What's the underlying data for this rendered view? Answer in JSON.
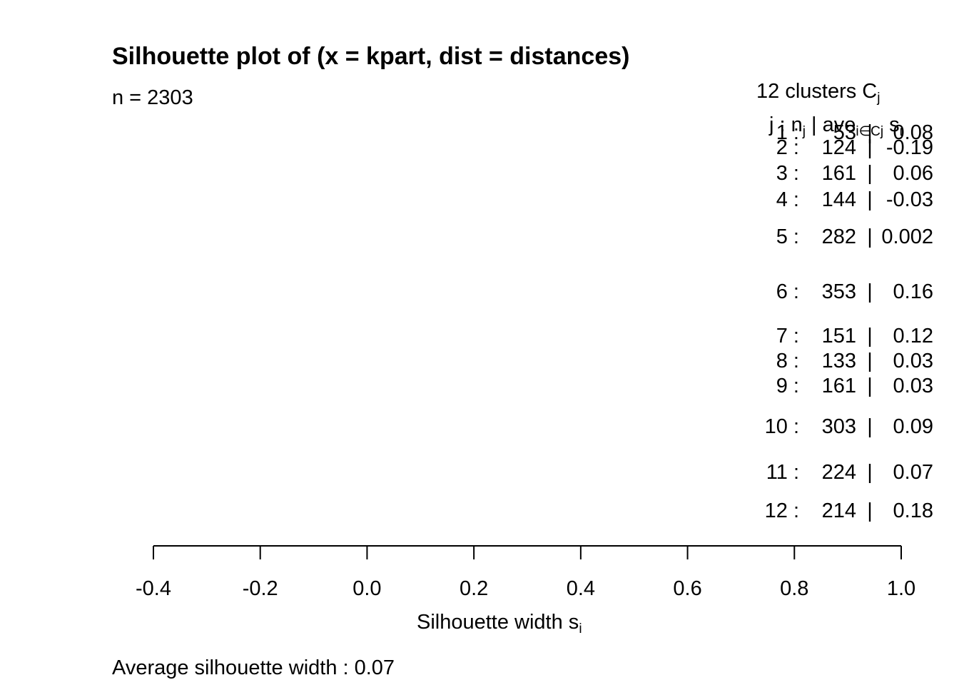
{
  "chart_data": {
    "type": "bar",
    "title": "Silhouette plot of (x = kpart, dist = distances)",
    "n_label": "n = 2303",
    "clusters_header": "12  clusters  C",
    "clusters_header_sub": "j",
    "columns_header": "j :  n",
    "columns_header_sub": "j",
    "columns_header_rest": " | ave",
    "columns_header_rest_sub": "i∈Cj",
    "columns_header_tail": " s",
    "columns_header_tail_sub": "i",
    "clusters": [
      {
        "j": "1",
        "n": "53",
        "ave": "0.08"
      },
      {
        "j": "2",
        "n": "124",
        "ave": "-0.19"
      },
      {
        "j": "3",
        "n": "161",
        "ave": "0.06"
      },
      {
        "j": "4",
        "n": "144",
        "ave": "-0.03"
      },
      {
        "j": "5",
        "n": "282",
        "ave": "0.002"
      },
      {
        "j": "6",
        "n": "353",
        "ave": "0.16"
      },
      {
        "j": "7",
        "n": "151",
        "ave": "0.12"
      },
      {
        "j": "8",
        "n": "133",
        "ave": "0.03"
      },
      {
        "j": "9",
        "n": "161",
        "ave": "0.03"
      },
      {
        "j": "10",
        "n": "303",
        "ave": "0.09"
      },
      {
        "j": "11",
        "n": "224",
        "ave": "0.07"
      },
      {
        "j": "12",
        "n": "214",
        "ave": "0.18"
      }
    ],
    "x_ticks": [
      "-0.4",
      "-0.2",
      "0.0",
      "0.2",
      "0.4",
      "0.6",
      "0.8",
      "1.0"
    ],
    "xlim": [
      -0.4,
      1.0
    ],
    "xlabel": "Silhouette width s",
    "xlabel_sub": "i",
    "average_label": "Average silhouette width :  0.07"
  }
}
